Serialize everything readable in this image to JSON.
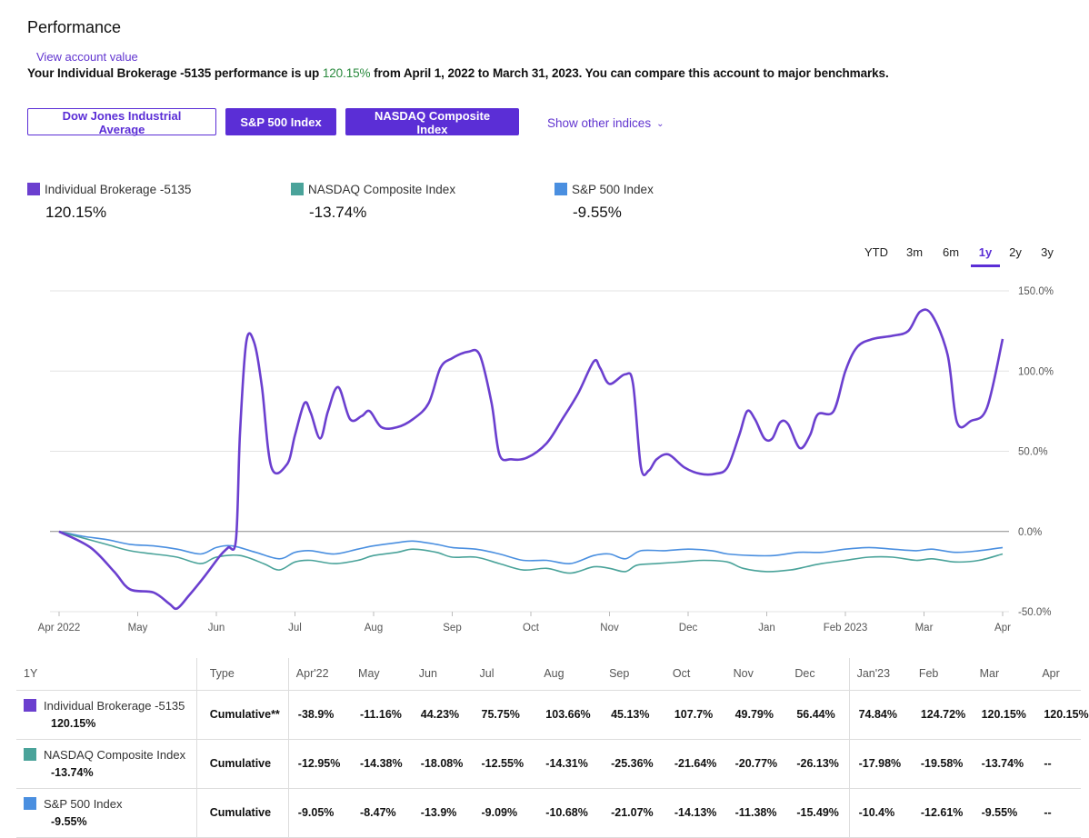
{
  "page": {
    "title": "Performance",
    "view_account_link": "View account value",
    "summary_prefix": "Your Individual Brokerage -5135 performance is up ",
    "summary_pct": "120.15%",
    "summary_suffix": " from April 1, 2022 to March 31, 2023. You can compare this account to major benchmarks."
  },
  "index_buttons": [
    {
      "label": "Dow Jones Industrial Average",
      "selected": false
    },
    {
      "label": "S&P 500 Index",
      "selected": true
    },
    {
      "label": "NASDAQ Composite Index",
      "selected": true
    }
  ],
  "show_other": "Show other indices",
  "legend": [
    {
      "name": "Individual Brokerage -5135",
      "value": "120.15%",
      "color": "#6b3fcf"
    },
    {
      "name": "NASDAQ Composite Index",
      "value": "-13.74%",
      "color": "#4aa39a"
    },
    {
      "name": "S&P 500 Index",
      "value": "-9.55%",
      "color": "#4a8fe0"
    }
  ],
  "ranges": [
    {
      "label": "YTD",
      "active": false
    },
    {
      "label": "3m",
      "active": false
    },
    {
      "label": "6m",
      "active": false
    },
    {
      "label": "1y",
      "active": true
    },
    {
      "label": "2y",
      "active": false
    },
    {
      "label": "3y",
      "active": false
    }
  ],
  "chart_data": {
    "type": "line",
    "x_labels": [
      "Apr 2022",
      "May",
      "Jun",
      "Jul",
      "Aug",
      "Sep",
      "Oct",
      "Nov",
      "Dec",
      "Jan",
      "Feb 2023",
      "Mar",
      "Apr"
    ],
    "y_ticks": [
      "150.0%",
      "100.0%",
      "50.0%",
      "0.0%",
      "-50.0%"
    ],
    "y_tick_values": [
      150,
      100,
      50,
      0,
      -50
    ],
    "ylim": [
      -50,
      150
    ],
    "x_range": [
      0,
      12
    ],
    "grid": true,
    "series": [
      {
        "name": "Individual Brokerage -5135",
        "color": "#6b3fcf",
        "points": [
          [
            0,
            0
          ],
          [
            0.4,
            -10
          ],
          [
            0.7,
            -25
          ],
          [
            0.9,
            -36
          ],
          [
            1.2,
            -38
          ],
          [
            1.4,
            -45
          ],
          [
            1.5,
            -48
          ],
          [
            1.65,
            -40
          ],
          [
            1.85,
            -28
          ],
          [
            2.05,
            -15
          ],
          [
            2.15,
            -10
          ],
          [
            2.25,
            -5
          ],
          [
            2.3,
            60
          ],
          [
            2.38,
            118
          ],
          [
            2.48,
            118
          ],
          [
            2.58,
            90
          ],
          [
            2.7,
            40
          ],
          [
            2.9,
            42
          ],
          [
            3.0,
            60
          ],
          [
            3.12,
            80
          ],
          [
            3.2,
            74
          ],
          [
            3.32,
            58
          ],
          [
            3.42,
            75
          ],
          [
            3.55,
            90
          ],
          [
            3.7,
            70
          ],
          [
            3.85,
            72
          ],
          [
            3.95,
            75
          ],
          [
            4.1,
            65
          ],
          [
            4.3,
            65
          ],
          [
            4.5,
            70
          ],
          [
            4.7,
            80
          ],
          [
            4.85,
            102
          ],
          [
            5.0,
            108
          ],
          [
            5.2,
            112
          ],
          [
            5.35,
            110
          ],
          [
            5.5,
            80
          ],
          [
            5.6,
            48
          ],
          [
            5.75,
            45
          ],
          [
            5.95,
            46
          ],
          [
            6.2,
            55
          ],
          [
            6.4,
            70
          ],
          [
            6.6,
            86
          ],
          [
            6.8,
            106
          ],
          [
            6.88,
            102
          ],
          [
            7.0,
            92
          ],
          [
            7.2,
            98
          ],
          [
            7.3,
            92
          ],
          [
            7.4,
            40
          ],
          [
            7.5,
            38
          ],
          [
            7.6,
            45
          ],
          [
            7.75,
            48
          ],
          [
            7.95,
            40
          ],
          [
            8.15,
            36
          ],
          [
            8.35,
            36
          ],
          [
            8.5,
            40
          ],
          [
            8.65,
            60
          ],
          [
            8.75,
            75
          ],
          [
            8.85,
            70
          ],
          [
            8.97,
            58
          ],
          [
            9.07,
            58
          ],
          [
            9.17,
            68
          ],
          [
            9.27,
            67
          ],
          [
            9.42,
            52
          ],
          [
            9.55,
            60
          ],
          [
            9.65,
            73
          ],
          [
            9.85,
            75
          ],
          [
            10.0,
            100
          ],
          [
            10.15,
            115
          ],
          [
            10.35,
            120
          ],
          [
            10.6,
            122
          ],
          [
            10.8,
            125
          ],
          [
            10.95,
            137
          ],
          [
            11.1,
            135
          ],
          [
            11.3,
            110
          ],
          [
            11.42,
            68
          ],
          [
            11.6,
            69
          ],
          [
            11.8,
            77
          ],
          [
            12.0,
            120
          ]
        ]
      },
      {
        "name": "NASDAQ Composite Index",
        "color": "#4aa39a",
        "points": [
          [
            0,
            0
          ],
          [
            0.3,
            -4
          ],
          [
            0.6,
            -8
          ],
          [
            0.9,
            -12
          ],
          [
            1.2,
            -14
          ],
          [
            1.5,
            -16
          ],
          [
            1.8,
            -20
          ],
          [
            2.0,
            -16
          ],
          [
            2.3,
            -15
          ],
          [
            2.6,
            -20
          ],
          [
            2.8,
            -24
          ],
          [
            3.0,
            -19
          ],
          [
            3.2,
            -18
          ],
          [
            3.5,
            -20
          ],
          [
            3.8,
            -18
          ],
          [
            4.0,
            -15
          ],
          [
            4.3,
            -13
          ],
          [
            4.5,
            -11
          ],
          [
            4.8,
            -13
          ],
          [
            5.0,
            -16
          ],
          [
            5.3,
            -16
          ],
          [
            5.6,
            -20
          ],
          [
            5.9,
            -24
          ],
          [
            6.2,
            -23
          ],
          [
            6.5,
            -26
          ],
          [
            6.8,
            -22
          ],
          [
            7.0,
            -23
          ],
          [
            7.2,
            -25
          ],
          [
            7.35,
            -21
          ],
          [
            7.6,
            -20
          ],
          [
            7.9,
            -19
          ],
          [
            8.2,
            -18
          ],
          [
            8.5,
            -19
          ],
          [
            8.7,
            -23
          ],
          [
            9.0,
            -25
          ],
          [
            9.3,
            -24
          ],
          [
            9.5,
            -22
          ],
          [
            9.7,
            -20
          ],
          [
            10.0,
            -18
          ],
          [
            10.3,
            -16
          ],
          [
            10.6,
            -16
          ],
          [
            10.9,
            -18
          ],
          [
            11.1,
            -17
          ],
          [
            11.4,
            -19
          ],
          [
            11.7,
            -18
          ],
          [
            12.0,
            -14
          ]
        ]
      },
      {
        "name": "S&P 500 Index",
        "color": "#4a8fe0",
        "points": [
          [
            0,
            0
          ],
          [
            0.3,
            -3
          ],
          [
            0.6,
            -5
          ],
          [
            0.9,
            -8
          ],
          [
            1.2,
            -9
          ],
          [
            1.5,
            -11
          ],
          [
            1.8,
            -14
          ],
          [
            2.0,
            -10
          ],
          [
            2.2,
            -9
          ],
          [
            2.5,
            -13
          ],
          [
            2.8,
            -17
          ],
          [
            3.0,
            -13
          ],
          [
            3.2,
            -12
          ],
          [
            3.5,
            -14
          ],
          [
            3.8,
            -11
          ],
          [
            4.0,
            -9
          ],
          [
            4.3,
            -7
          ],
          [
            4.5,
            -6
          ],
          [
            4.8,
            -8
          ],
          [
            5.0,
            -10
          ],
          [
            5.3,
            -11
          ],
          [
            5.6,
            -14
          ],
          [
            5.9,
            -18
          ],
          [
            6.2,
            -18
          ],
          [
            6.5,
            -20
          ],
          [
            6.8,
            -15
          ],
          [
            7.0,
            -14
          ],
          [
            7.2,
            -17
          ],
          [
            7.4,
            -12
          ],
          [
            7.7,
            -12
          ],
          [
            8.0,
            -11
          ],
          [
            8.3,
            -12
          ],
          [
            8.5,
            -14
          ],
          [
            8.8,
            -15
          ],
          [
            9.1,
            -15
          ],
          [
            9.4,
            -13
          ],
          [
            9.7,
            -13
          ],
          [
            10.0,
            -11
          ],
          [
            10.3,
            -10
          ],
          [
            10.6,
            -11
          ],
          [
            10.9,
            -12
          ],
          [
            11.1,
            -11
          ],
          [
            11.4,
            -13
          ],
          [
            11.7,
            -12
          ],
          [
            12.0,
            -10
          ]
        ]
      }
    ]
  },
  "table": {
    "period_label": "1Y",
    "type_header": "Type",
    "months": [
      "Apr'22",
      "May",
      "Jun",
      "Jul",
      "Aug",
      "Sep",
      "Oct",
      "Nov",
      "Dec",
      "Jan'23",
      "Feb",
      "Mar",
      "Apr"
    ],
    "rows": [
      {
        "name": "Individual Brokerage -5135",
        "pct": "120.15%",
        "color": "#6b3fcf",
        "type": "Cumulative**",
        "values": [
          "-38.9%",
          "-11.16%",
          "44.23%",
          "75.75%",
          "103.66%",
          "45.13%",
          "107.7%",
          "49.79%",
          "56.44%",
          "74.84%",
          "124.72%",
          "120.15%",
          "120.15%"
        ]
      },
      {
        "name": "NASDAQ Composite Index",
        "pct": "-13.74%",
        "color": "#4aa39a",
        "type": "Cumulative",
        "values": [
          "-12.95%",
          "-14.38%",
          "-18.08%",
          "-12.55%",
          "-14.31%",
          "-25.36%",
          "-21.64%",
          "-20.77%",
          "-26.13%",
          "-17.98%",
          "-19.58%",
          "-13.74%",
          "--"
        ]
      },
      {
        "name": "S&P 500 Index",
        "pct": "-9.55%",
        "color": "#4a8fe0",
        "type": "Cumulative",
        "values": [
          "-9.05%",
          "-8.47%",
          "-13.9%",
          "-9.09%",
          "-10.68%",
          "-21.07%",
          "-14.13%",
          "-11.38%",
          "-15.49%",
          "-10.4%",
          "-12.61%",
          "-9.55%",
          "--"
        ]
      }
    ]
  }
}
